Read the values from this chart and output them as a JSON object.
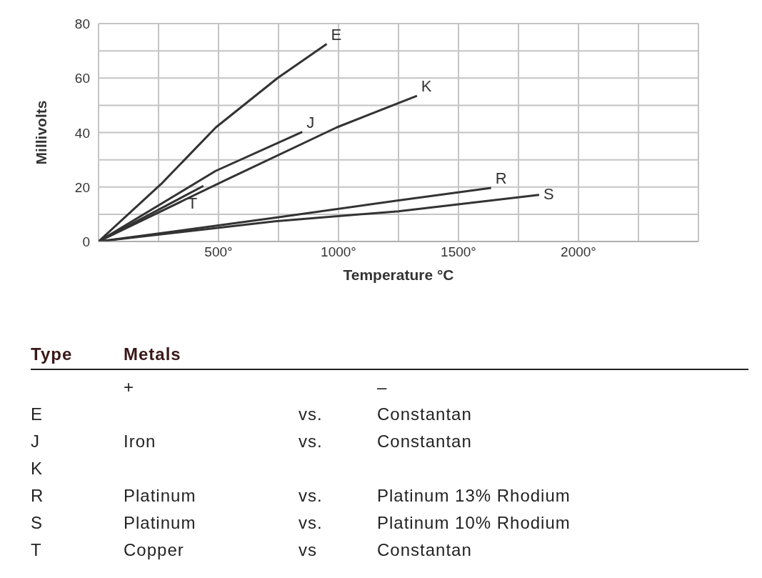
{
  "chart_data": {
    "type": "line",
    "xlabel": "Temperature °C",
    "ylabel": "Millivolts",
    "xlim": [
      0,
      2500
    ],
    "xticks": [
      {
        "value": 0,
        "label": null
      },
      {
        "value": 250,
        "label": null
      },
      {
        "value": 500,
        "label": "500°"
      },
      {
        "value": 750,
        "label": null
      },
      {
        "value": 1000,
        "label": "1000°"
      },
      {
        "value": 1250,
        "label": null
      },
      {
        "value": 1500,
        "label": "1500°"
      },
      {
        "value": 1750,
        "label": null
      },
      {
        "value": 2000,
        "label": "2000°"
      },
      {
        "value": 2250,
        "label": null
      },
      {
        "value": 2500,
        "label": null
      }
    ],
    "ylim": [
      0,
      80
    ],
    "yticks": [
      0,
      {
        "value": 10,
        "label": null
      },
      20,
      {
        "value": 30,
        "label": null
      },
      40,
      {
        "value": 50,
        "label": null
      },
      60,
      {
        "value": 70,
        "label": null
      },
      80
    ],
    "grid": true,
    "legend": false,
    "marker": "none",
    "line_style": "solid",
    "series": [
      {
        "name": "E",
        "color": "#333333",
        "x": [
          0,
          262,
          489,
          746,
          951
        ],
        "values": [
          0,
          21.2,
          41.9,
          60,
          72.5
        ]
      },
      {
        "name": "J",
        "color": "#333333",
        "x": [
          0,
          488,
          849
        ],
        "values": [
          0,
          25.9,
          40.2
        ]
      },
      {
        "name": "K",
        "color": "#333333",
        "x": [
          0,
          540,
          993,
          1327
        ],
        "values": [
          0,
          23,
          41.9,
          53.5
        ]
      },
      {
        "name": "R",
        "color": "#333333",
        "x": [
          0,
          735,
          1250,
          1636
        ],
        "values": [
          0,
          8.7,
          15.1,
          19.7
        ]
      },
      {
        "name": "S",
        "color": "#333333",
        "x": [
          0,
          735,
          1250,
          1836
        ],
        "values": [
          0,
          7.4,
          11.1,
          17.1
        ]
      },
      {
        "name": "T",
        "color": "#333333",
        "x": [
          0,
          437
        ],
        "values": [
          0,
          20.4
        ]
      }
    ],
    "annotations": [
      "Type\tMetals",
      "\t+\t\t–",
      "E\t\tvs.\tConstantan",
      "J\tIron\tvs.\tConstantan",
      "K",
      "R\tPlatinum\tvs.\tPlatinum 13% Rhodium",
      "S\tPlatinum\tvs.\tPlatinum 10% Rhodium",
      "T\tCopper\tvs\tConstantan"
    ]
  }
}
